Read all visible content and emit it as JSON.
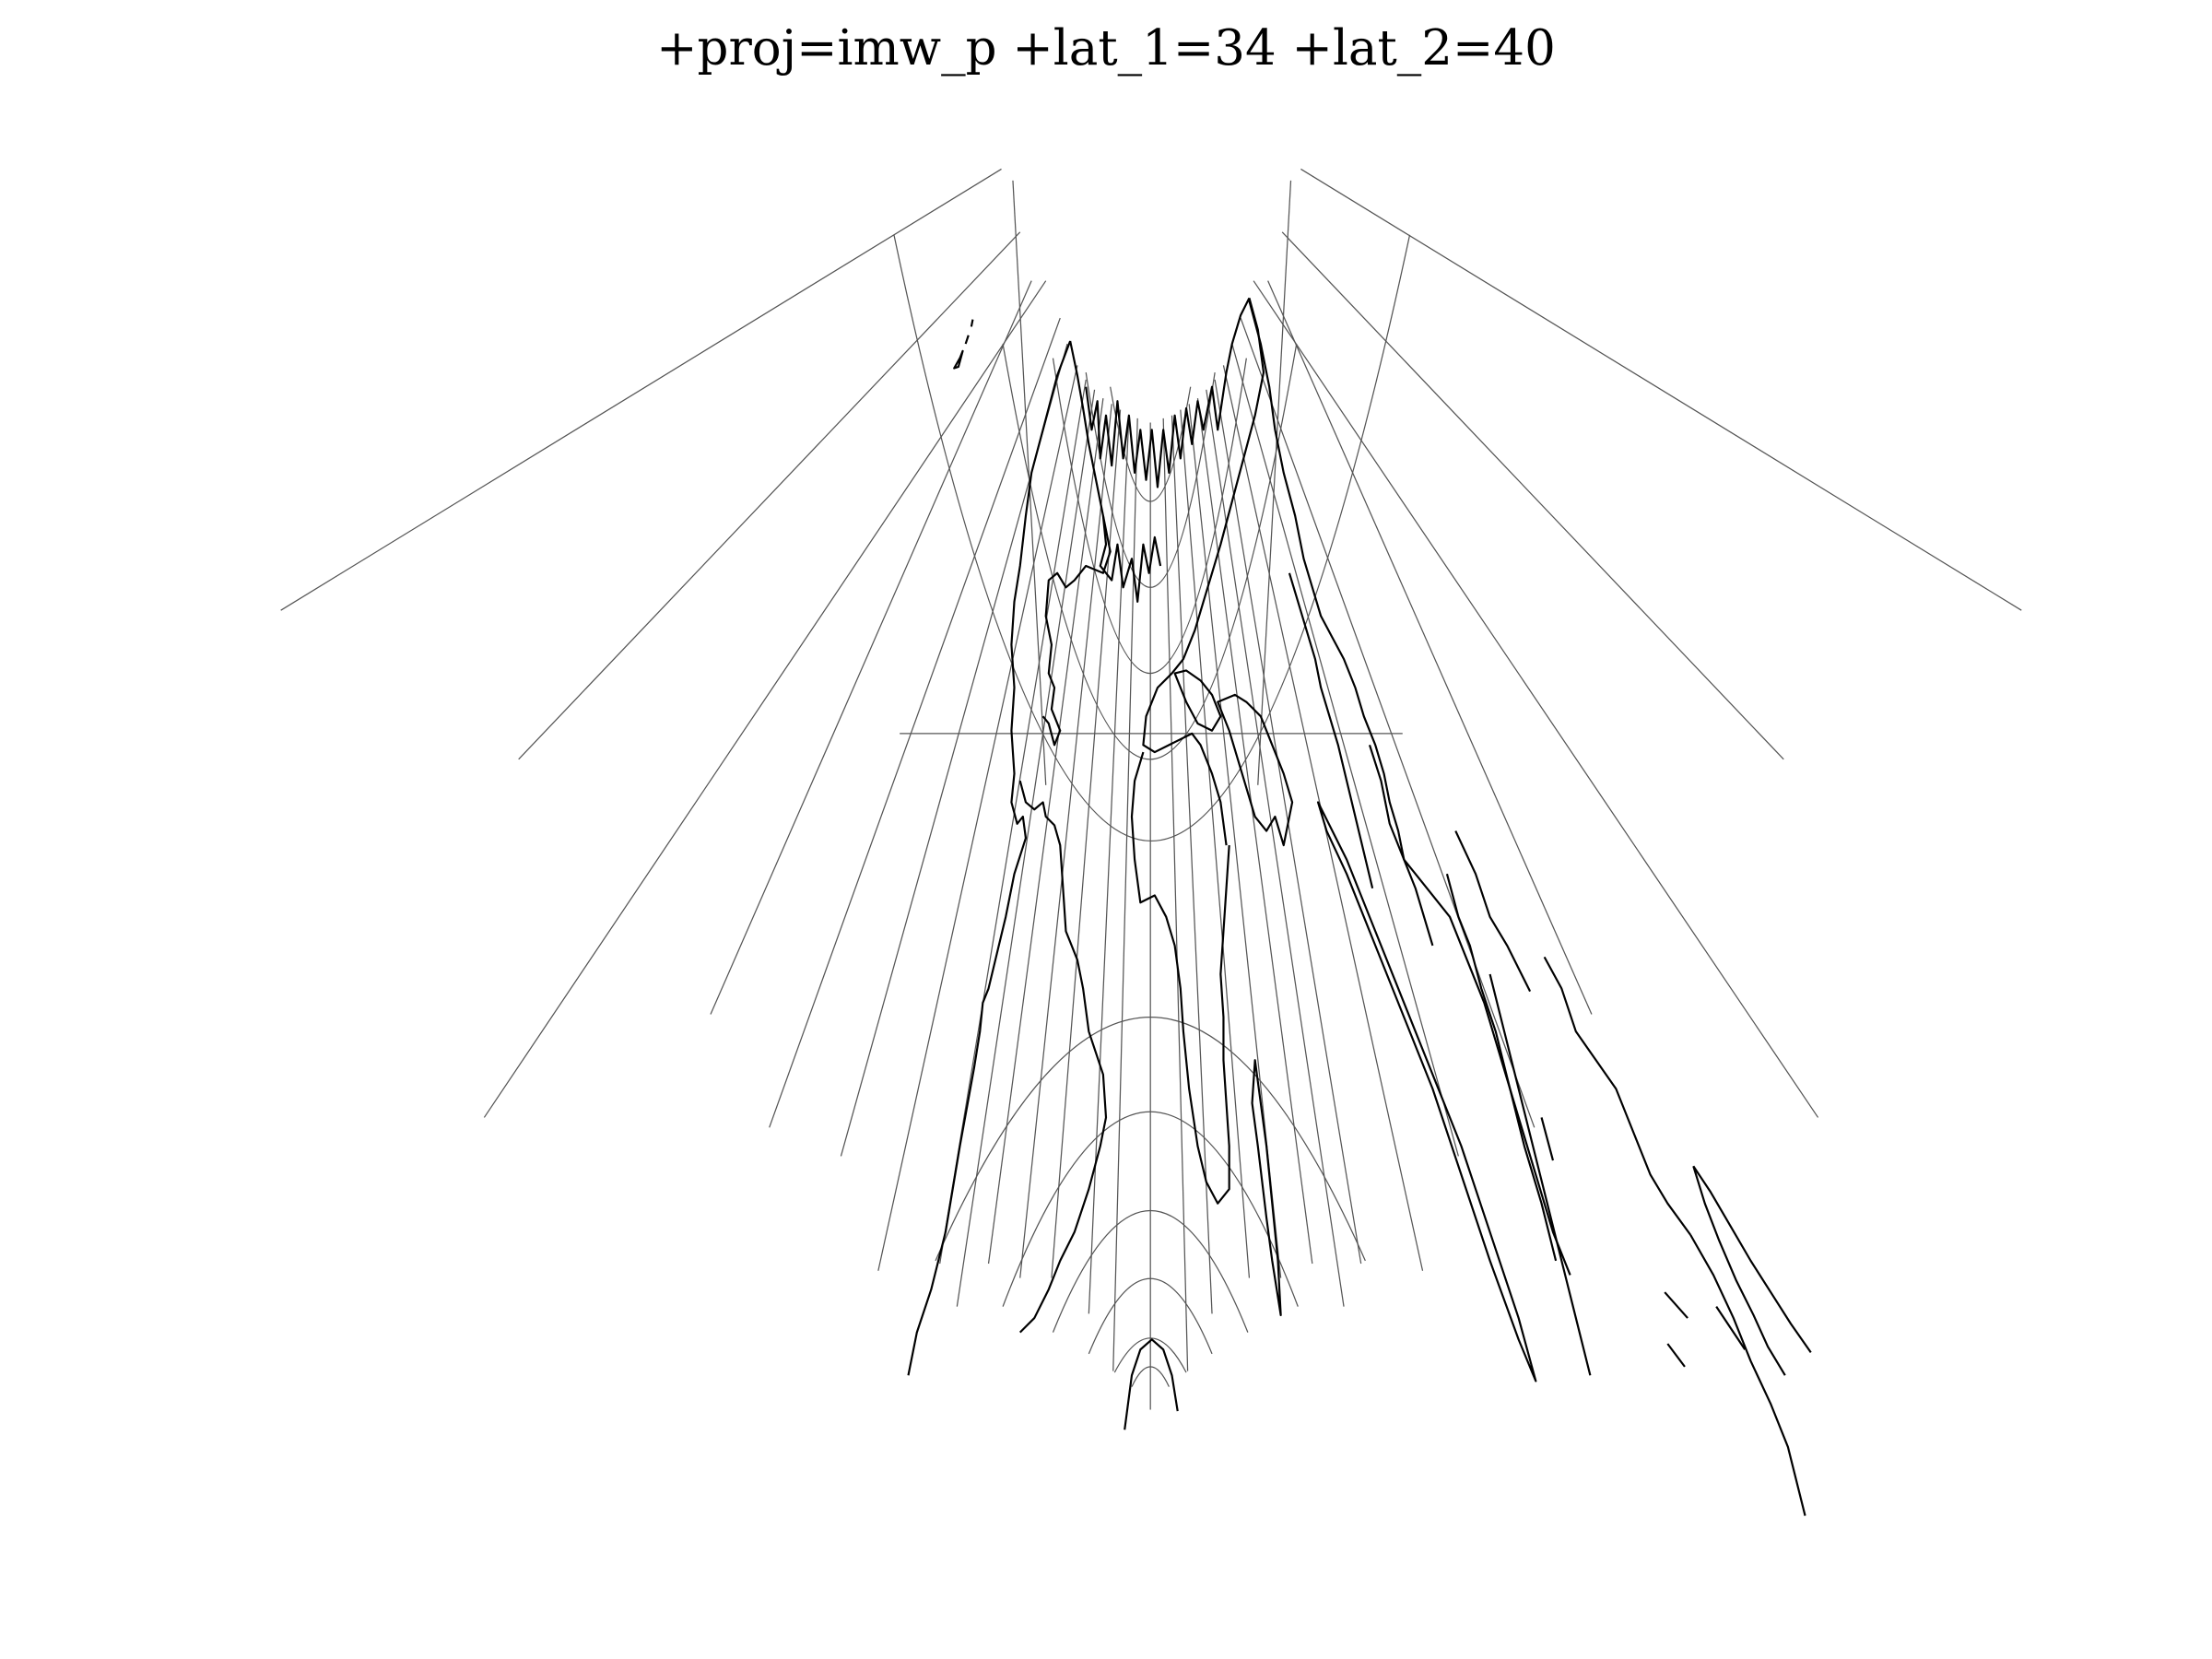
{
  "title": "+proj=imw_p +lat_1=34 +lat_2=40",
  "colors": {
    "background": "#ffffff",
    "graticule": "#555555",
    "coastline": "#000000",
    "title": "#000000"
  }
}
